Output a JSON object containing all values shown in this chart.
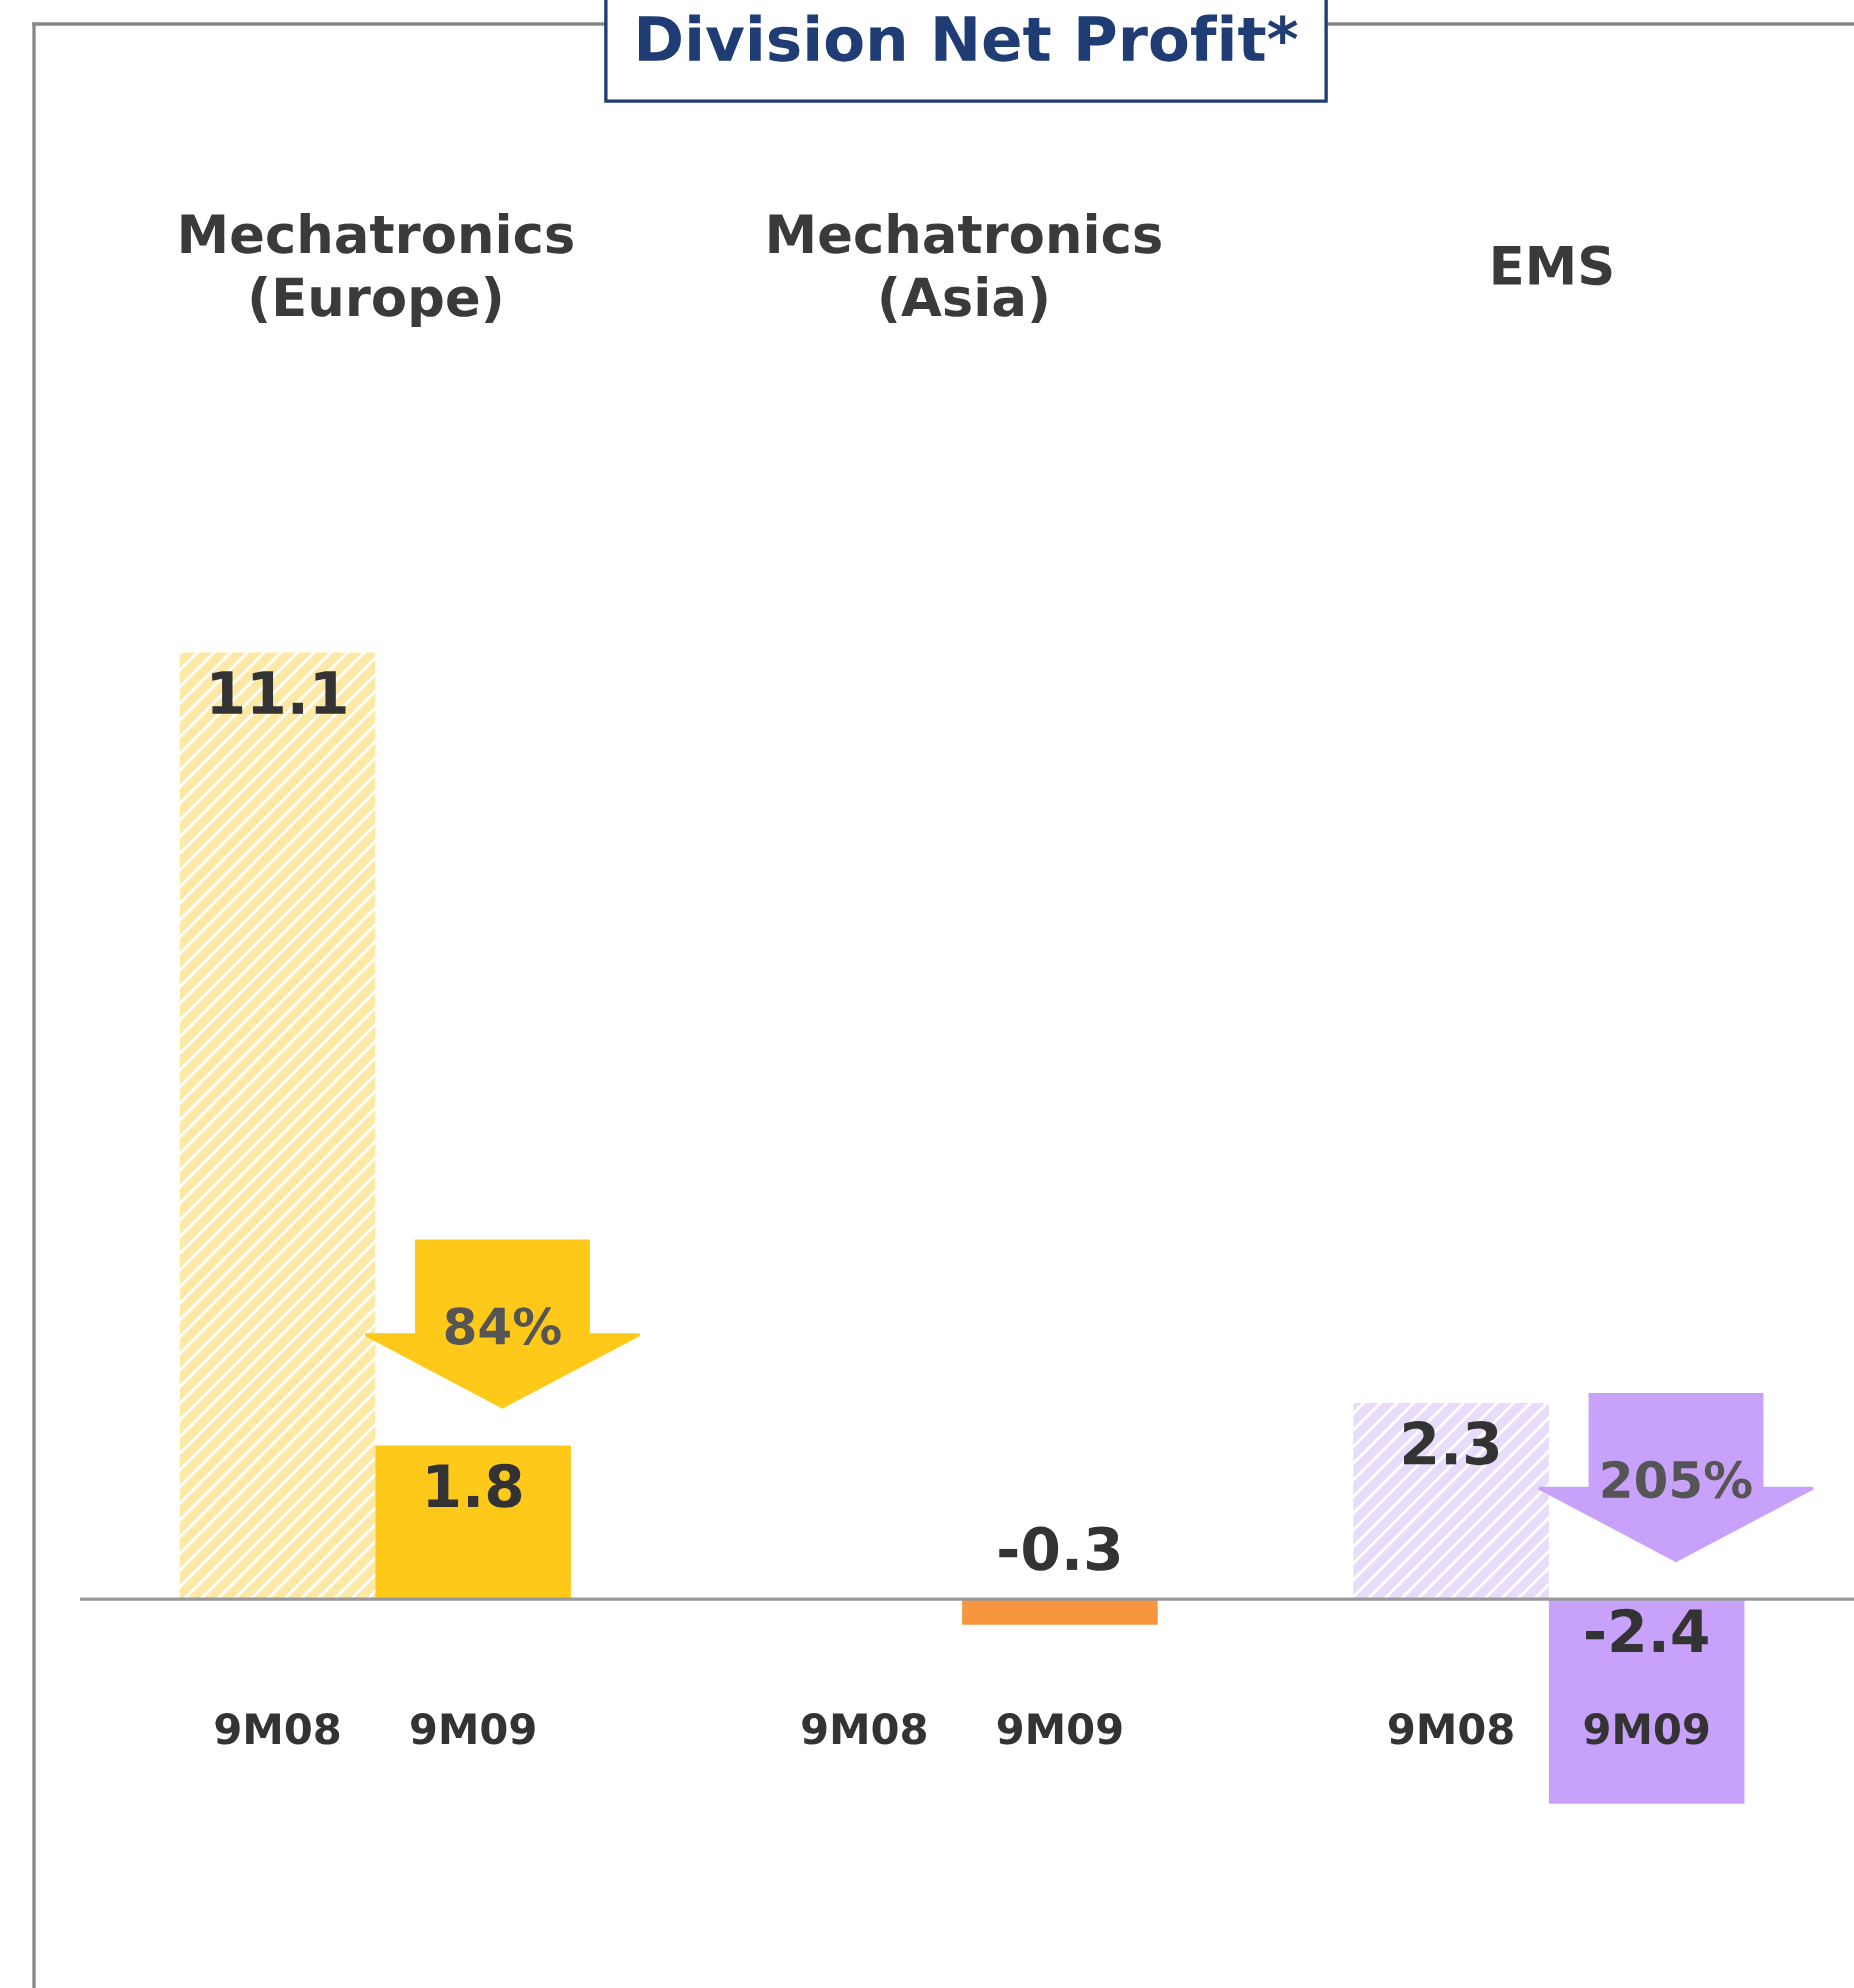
{
  "chart_data": {
    "type": "bar",
    "title": "Division Net Profit*",
    "categories": [
      "9M08",
      "9M09",
      null,
      "9M08",
      "9M09",
      null,
      "9M08",
      "9M09"
    ],
    "values": [
      11.1,
      1.8,
      null,
      null,
      -0.3,
      null,
      2.3,
      -2.4
    ],
    "colors": [
      "#fde9a6",
      "#ffc91a",
      "#ffffff",
      "#fbd3a8",
      "#f7963f",
      "#ffffff",
      "#e9dcfa",
      "#c8a2fa"
    ],
    "data_labels": true,
    "annotations": [
      "Mechatronics\n(Europe)",
      "Mechatronics\n(Asia)",
      "EMS",
      "84%",
      "205%"
    ]
  }
}
